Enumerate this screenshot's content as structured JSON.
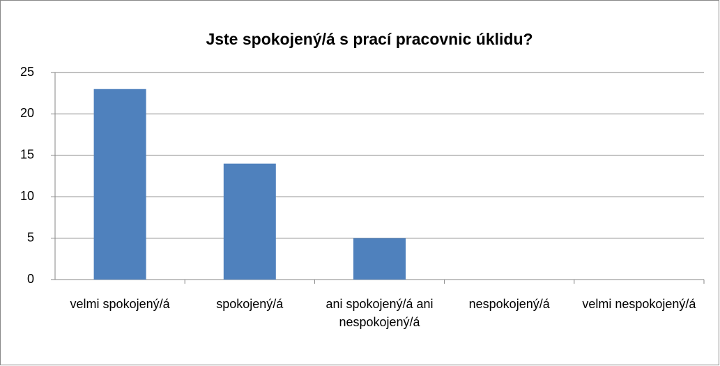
{
  "chart_data": {
    "type": "bar",
    "title": "Jste spokojený/á s prací pracovnic úklidu?",
    "categories": [
      "velmi spokojený/á",
      "spokojený/á",
      "ani spokojený/á ani nespokojený/á",
      "nespokojený/á",
      "velmi nespokojený/á"
    ],
    "values": [
      23,
      14,
      5,
      0,
      0
    ],
    "color": "#4f81bd",
    "ylim": [
      0,
      25
    ],
    "yticks": [
      0,
      5,
      10,
      15,
      20,
      25
    ],
    "grid": true
  }
}
